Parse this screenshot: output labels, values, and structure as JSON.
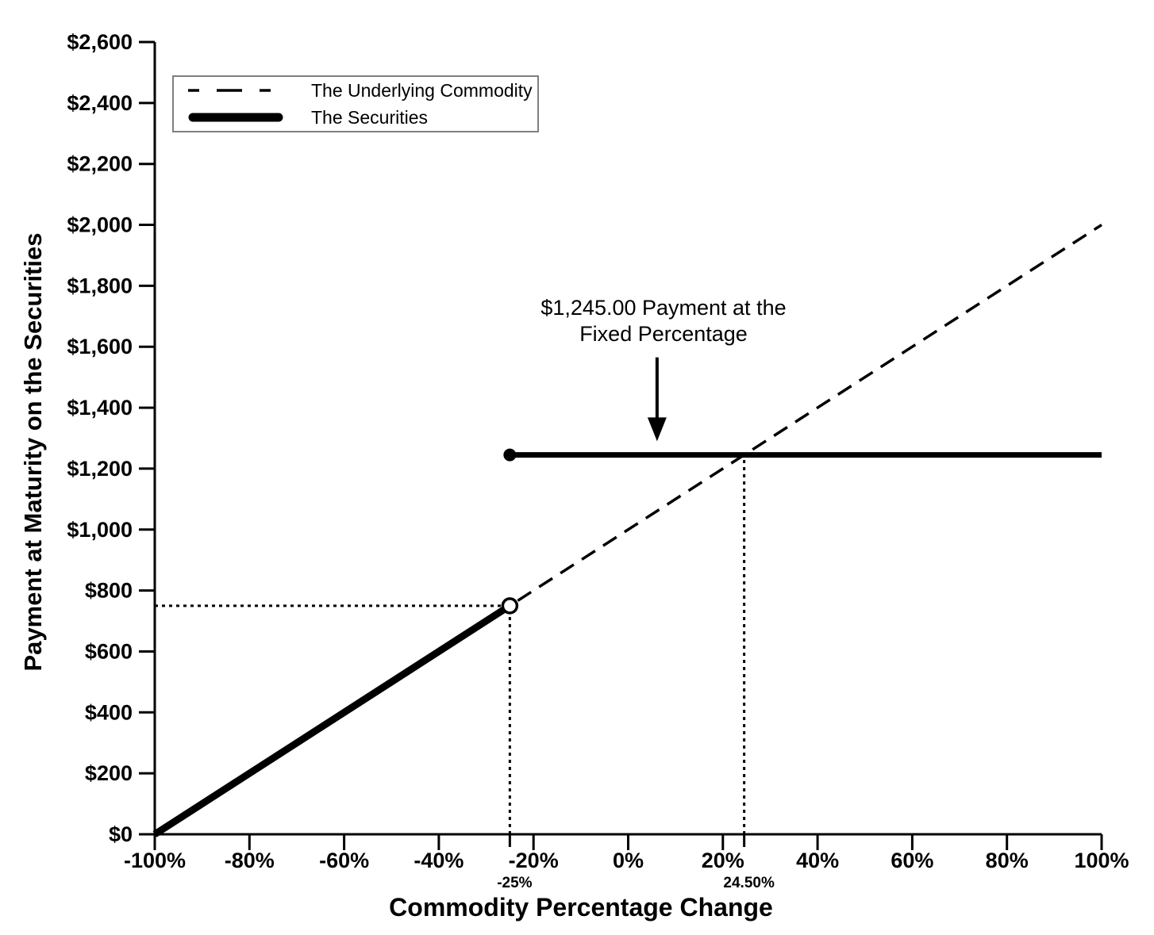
{
  "chart_data": {
    "type": "line",
    "title": "",
    "xlabel": "Commodity Percentage Change",
    "ylabel": "Payment at Maturity on the Securities",
    "xlim": [
      -100,
      100
    ],
    "ylim": [
      0,
      2600
    ],
    "grid": false,
    "legend_position": "top-left",
    "x_ticks": [
      {
        "value": -100,
        "label": "-100%"
      },
      {
        "value": -80,
        "label": "-80%"
      },
      {
        "value": -60,
        "label": "-60%"
      },
      {
        "value": -40,
        "label": "-40%"
      },
      {
        "value": -20,
        "label": "-20%"
      },
      {
        "value": 0,
        "label": "0%"
      },
      {
        "value": 20,
        "label": "20%"
      },
      {
        "value": 40,
        "label": "40%"
      },
      {
        "value": 60,
        "label": "60%"
      },
      {
        "value": 80,
        "label": "80%"
      },
      {
        "value": 100,
        "label": "100%"
      }
    ],
    "special_x_ticks": [
      {
        "value": -25,
        "label": "-25%"
      },
      {
        "value": 24.5,
        "label": "24.50%"
      }
    ],
    "y_ticks": [
      {
        "value": 0,
        "label": "$0"
      },
      {
        "value": 200,
        "label": "$200"
      },
      {
        "value": 400,
        "label": "$400"
      },
      {
        "value": 600,
        "label": "$600"
      },
      {
        "value": 800,
        "label": "$800"
      },
      {
        "value": 1000,
        "label": "$1,000"
      },
      {
        "value": 1200,
        "label": "$1,200"
      },
      {
        "value": 1400,
        "label": "$1,400"
      },
      {
        "value": 1600,
        "label": "$1,600"
      },
      {
        "value": 1800,
        "label": "$1,800"
      },
      {
        "value": 2000,
        "label": "$2,000"
      },
      {
        "value": 2200,
        "label": "$2,200"
      },
      {
        "value": 2400,
        "label": "$2,400"
      },
      {
        "value": 2600,
        "label": "$2,600"
      }
    ],
    "series": [
      {
        "name": "The Underlying Commodity",
        "style": "dashed",
        "points": [
          [
            -100,
            0
          ],
          [
            100,
            2000
          ]
        ]
      },
      {
        "name": "The Securities",
        "style": "solid-thick",
        "segments": [
          [
            [
              -100,
              0
            ],
            [
              -25,
              750
            ]
          ],
          [
            [
              -25,
              1245
            ],
            [
              100,
              1245
            ]
          ]
        ]
      }
    ],
    "markers": [
      {
        "shape": "open-circle",
        "x": -25,
        "y": 750
      },
      {
        "shape": "filled-circle",
        "x": -25,
        "y": 1245
      }
    ],
    "guides": [
      {
        "from": [
          -100,
          750
        ],
        "to": [
          -25,
          750
        ]
      },
      {
        "from": [
          -25,
          0
        ],
        "to": [
          -25,
          750
        ]
      },
      {
        "from": [
          24.5,
          0
        ],
        "to": [
          24.5,
          1245
        ]
      }
    ],
    "annotation": {
      "line1": "$1,245.00 Payment at the",
      "line2": "Fixed Percentage",
      "arrow": {
        "x": 6.1,
        "y_start": 1565,
        "y_tip": 1290
      }
    },
    "legend": {
      "items": [
        {
          "label": "The Underlying Commodity",
          "style": "dashed"
        },
        {
          "label": "The Securities",
          "style": "solid-thick"
        }
      ]
    },
    "colors": {
      "ink": "#000000",
      "background": "#ffffff",
      "legend_border": "#7f7f7f"
    }
  }
}
